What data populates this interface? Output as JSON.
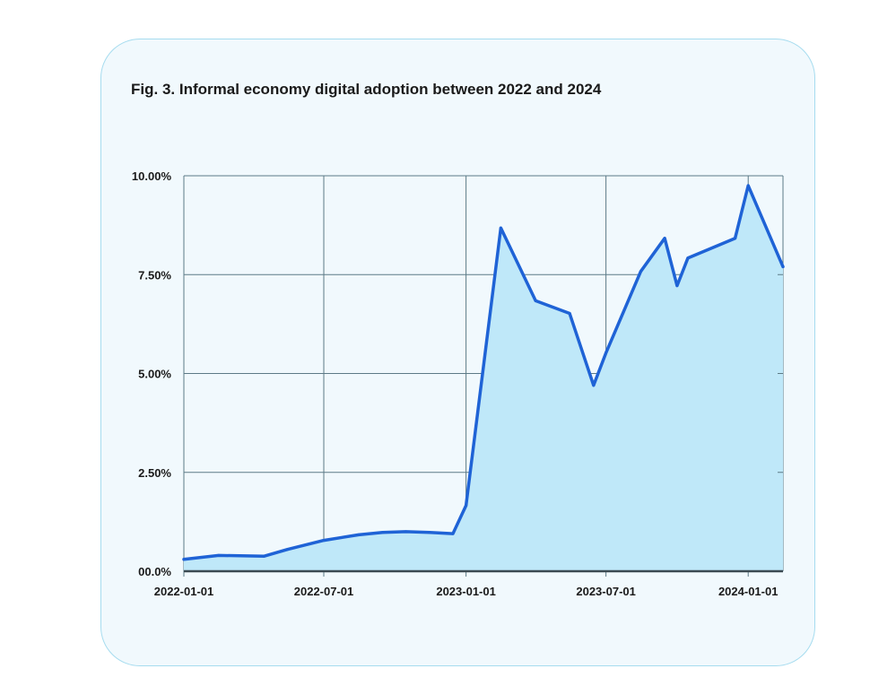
{
  "figure": {
    "label": "Fig. 3.",
    "caption": "Informal economy digital adoption between 2022 and 2024"
  },
  "colors": {
    "card_background": "#f1f9fd",
    "card_border": "#a6dcef",
    "line": "#1f63d6",
    "area_fill": "#bfe8f9",
    "grid": "#5c7a86",
    "text": "#1a1a1a"
  },
  "chart_data": {
    "type": "area",
    "title": "Informal economy digital adoption between 2022 and 2024",
    "xlabel": "",
    "ylabel": "",
    "x_axis_type": "date",
    "xlim": [
      "2022-01-01",
      "2024-02-15"
    ],
    "ylim": [
      0,
      10
    ],
    "y_unit": "%",
    "grid": true,
    "legend": "none",
    "x_ticks": [
      "2022-01-01",
      "2022-07-01",
      "2023-01-01",
      "2023-07-01",
      "2024-01-01"
    ],
    "y_ticks": [
      {
        "value": 0,
        "label": "00.0%"
      },
      {
        "value": 2.5,
        "label": "2.50%"
      },
      {
        "value": 5,
        "label": "5.00%"
      },
      {
        "value": 7.5,
        "label": "7.50%"
      },
      {
        "value": 10,
        "label": "10.00%"
      }
    ],
    "series": [
      {
        "x": [
          "2022-01-01",
          "2022-02-15",
          "2022-04-15",
          "2022-05-15",
          "2022-07-01",
          "2022-08-15",
          "2022-09-15",
          "2022-10-15",
          "2022-11-15",
          "2022-12-15",
          "2023-01-01",
          "2023-02-15",
          "2023-04-01",
          "2023-05-15",
          "2023-06-15",
          "2023-07-01",
          "2023-08-15",
          "2023-09-15",
          "2023-10-01",
          "2023-10-15",
          "2023-12-15",
          "2024-01-01",
          "2024-02-15"
        ],
        "values": [
          0.3,
          0.4,
          0.38,
          0.55,
          0.78,
          0.92,
          0.98,
          1.0,
          0.98,
          0.95,
          1.66,
          8.68,
          6.84,
          6.52,
          4.7,
          5.52,
          7.58,
          8.42,
          7.22,
          7.92,
          8.42,
          9.75,
          7.7
        ]
      }
    ]
  }
}
